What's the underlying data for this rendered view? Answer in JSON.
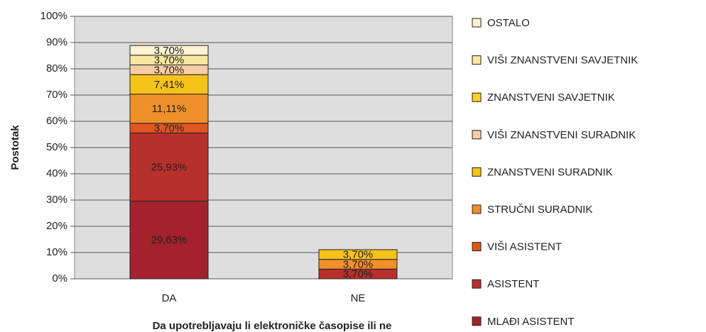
{
  "chart_data": {
    "type": "stacked_bar",
    "categories": [
      "DA",
      "NE"
    ],
    "x_label": "Da upotrebljavaju li elektroničke časopise ili ne",
    "y_label": "Postotak",
    "ylim": [
      0,
      100
    ],
    "yticks": [
      {
        "value": 0,
        "label": "0%"
      },
      {
        "value": 10,
        "label": "10%"
      },
      {
        "value": 20,
        "label": "20%"
      },
      {
        "value": 30,
        "label": "30%"
      },
      {
        "value": 40,
        "label": "40%"
      },
      {
        "value": 50,
        "label": "50%"
      },
      {
        "value": 60,
        "label": "60%"
      },
      {
        "value": 70,
        "label": "70%"
      },
      {
        "value": 80,
        "label": "80%"
      },
      {
        "value": 90,
        "label": "90%"
      },
      {
        "value": 100,
        "label": "100%"
      }
    ],
    "grid": true,
    "legend": "right",
    "series": [
      {
        "name": "MLAĐI ASISTENT",
        "color": "#a3222e",
        "values": [
          29.63,
          null
        ],
        "value_labels": [
          "29,63%",
          null
        ]
      },
      {
        "name": "ASISTENT",
        "color": "#b8302c",
        "values": [
          25.93,
          3.7
        ],
        "value_labels": [
          "25,93%",
          "3,70%"
        ]
      },
      {
        "name": "VIŠI ASISTENT",
        "color": "#e0561e",
        "values": [
          3.7,
          null
        ],
        "value_labels": [
          "3,70%",
          null
        ]
      },
      {
        "name": "STRUČNI SURADNIK",
        "color": "#f0902a",
        "values": [
          11.11,
          3.7
        ],
        "value_labels": [
          "11,11%",
          "3,70%"
        ]
      },
      {
        "name": "ZNANSTVENI SURADNIK",
        "color": "#f5c31a",
        "values": [
          7.41,
          3.7
        ],
        "value_labels": [
          "7,41%",
          "3,70%"
        ]
      },
      {
        "name": "VIŠI ZNANSTVENI SURADNIK",
        "color": "#f8cca6",
        "values": [
          3.7,
          null
        ],
        "value_labels": [
          "3,70%",
          null
        ]
      },
      {
        "name": "ZNANSTVENI SAVJETNIK",
        "color": "#f7d21e",
        "values": [
          null,
          null
        ],
        "value_labels": [
          null,
          null
        ]
      },
      {
        "name": "VIŠI ZNANSTVENI SAVJETNIK",
        "color": "#fbe8a0",
        "values": [
          3.7,
          null
        ],
        "value_labels": [
          "3,70%",
          null
        ]
      },
      {
        "name": "OSTALO",
        "color": "#fdf3d2",
        "values": [
          3.7,
          null
        ],
        "value_labels": [
          "3,70%",
          null
        ]
      }
    ]
  }
}
